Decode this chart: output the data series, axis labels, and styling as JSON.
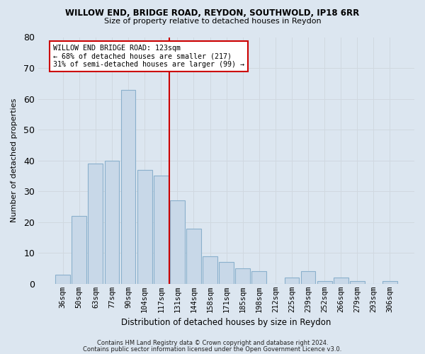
{
  "title1": "WILLOW END, BRIDGE ROAD, REYDON, SOUTHWOLD, IP18 6RR",
  "title2": "Size of property relative to detached houses in Reydon",
  "xlabel": "Distribution of detached houses by size in Reydon",
  "ylabel": "Number of detached properties",
  "categories": [
    "36sqm",
    "50sqm",
    "63sqm",
    "77sqm",
    "90sqm",
    "104sqm",
    "117sqm",
    "131sqm",
    "144sqm",
    "158sqm",
    "171sqm",
    "185sqm",
    "198sqm",
    "212sqm",
    "225sqm",
    "239sqm",
    "252sqm",
    "266sqm",
    "279sqm",
    "293sqm",
    "306sqm"
  ],
  "values": [
    3,
    22,
    39,
    40,
    63,
    37,
    35,
    27,
    18,
    9,
    7,
    5,
    4,
    0,
    2,
    4,
    1,
    2,
    1,
    0,
    1
  ],
  "bar_color": "#c8d8e8",
  "bar_edge_color": "#8ab0cc",
  "vline_color": "#cc0000",
  "annotation_line1": "WILLOW END BRIDGE ROAD: 123sqm",
  "annotation_line2": "← 68% of detached houses are smaller (217)",
  "annotation_line3": "31% of semi-detached houses are larger (99) →",
  "annotation_box_facecolor": "#ffffff",
  "annotation_box_edgecolor": "#cc0000",
  "grid_color": "#d0d8e0",
  "fig_facecolor": "#dce6f0",
  "ax_facecolor": "#dce6f0",
  "ylim": [
    0,
    80
  ],
  "yticks": [
    0,
    10,
    20,
    30,
    40,
    50,
    60,
    70,
    80
  ],
  "footer1": "Contains HM Land Registry data © Crown copyright and database right 2024.",
  "footer2": "Contains public sector information licensed under the Open Government Licence v3.0."
}
